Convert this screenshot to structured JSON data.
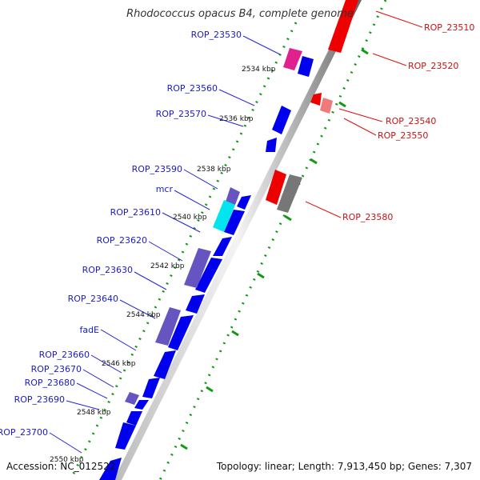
{
  "title": "Rhodococcus opacus B4, complete genome",
  "accession": "Accession: NC_012522",
  "summary": "Topology: linear; Length: 7,913,450 bp; Genes: 7,307",
  "ticks": [
    "2534 kbp",
    "2536 kbp",
    "2538 kbp",
    "2540 kbp",
    "2542 kbp",
    "2544 kbp",
    "2546 kbp",
    "2548 kbp",
    "2550 kbp"
  ],
  "colors": {
    "forward": "#0000ee",
    "reverse": "#ee0000",
    "magenta": "#e0208c",
    "slate": "#6655c0",
    "cyan": "#00e5ee",
    "grey": "#777777",
    "pink": "#f07a7a",
    "label_forward": "#1a1acc",
    "label_reverse": "#cc1111",
    "tick_dots": "#119911"
  },
  "genes_left": [
    {
      "label": "ROP_23530"
    },
    {
      "label": "ROP_23560"
    },
    {
      "label": "ROP_23570"
    },
    {
      "label": "ROP_23590"
    },
    {
      "label": "mcr"
    },
    {
      "label": "ROP_23610"
    },
    {
      "label": "ROP_23620"
    },
    {
      "label": "ROP_23630"
    },
    {
      "label": "ROP_23640"
    },
    {
      "label": "fadE"
    },
    {
      "label": "ROP_23660"
    },
    {
      "label": "ROP_23670"
    },
    {
      "label": "ROP_23680"
    },
    {
      "label": "ROP_23690"
    },
    {
      "label": "ROP_23700"
    }
  ],
  "genes_right": [
    {
      "label": "ROP_23510"
    },
    {
      "label": "ROP_23520"
    },
    {
      "label": "ROP_23540"
    },
    {
      "label": "ROP_23550"
    },
    {
      "label": "ROP_23580"
    }
  ]
}
